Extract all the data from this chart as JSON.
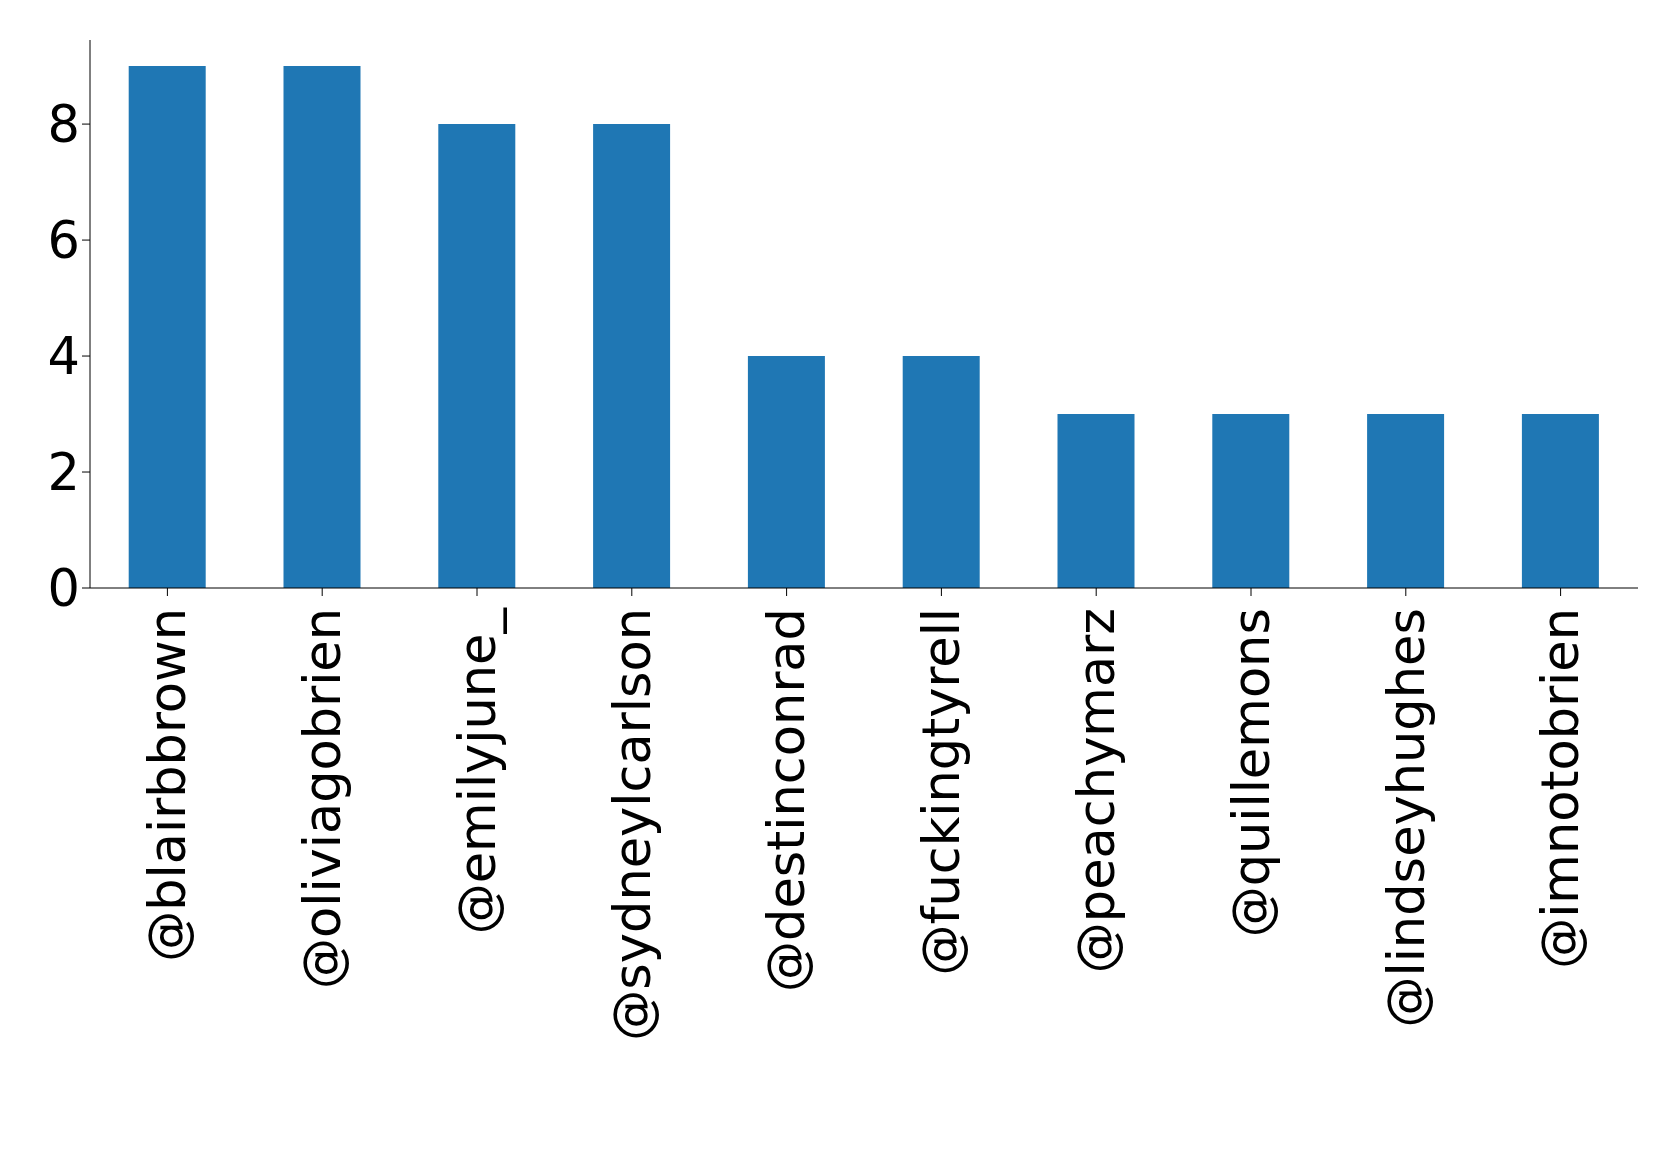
{
  "chart_data": {
    "type": "bar",
    "categories": [
      "@blairbbrown",
      "@oliviagobrien",
      "@emilyjune_",
      "@sydneylcarlson",
      "@destinconrad",
      "@fuckingtyrell",
      "@peachymarz",
      "@quillemons",
      "@lindseyhughes",
      "@imnotobrien"
    ],
    "values": [
      9,
      9,
      8,
      8,
      4,
      4,
      3,
      3,
      3,
      3
    ],
    "color": "#1f77b4",
    "ylim": [
      0,
      9.45
    ],
    "yticks": [
      0,
      2,
      4,
      6,
      8
    ],
    "grid": false,
    "legend": false
  }
}
